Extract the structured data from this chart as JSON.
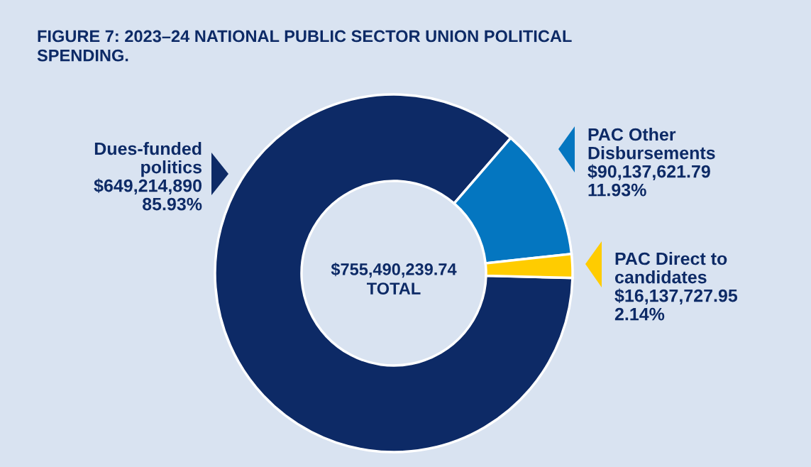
{
  "chart_data": {
    "type": "donut",
    "title": "FIGURE 7: 2023–24 NATIONAL PUBLIC SECTOR UNION POLITICAL\nSPENDING.",
    "categories": [
      "Dues-funded\npolitics",
      "PAC Other\nDisbursements",
      "PAC Direct to\ncandidates"
    ],
    "values": [
      649214890,
      90137621.79,
      16137727.95
    ],
    "colors": [
      "#0d2a66",
      "#0476c0",
      "#ffcc00"
    ],
    "value_labels": [
      "$649,214,890\n85.93%",
      "$90,137,621.79\n11.93%",
      "$16,137,727.95\n2.14%"
    ],
    "annotations": [
      "$755,490,239.74\nTOTAL"
    ]
  }
}
